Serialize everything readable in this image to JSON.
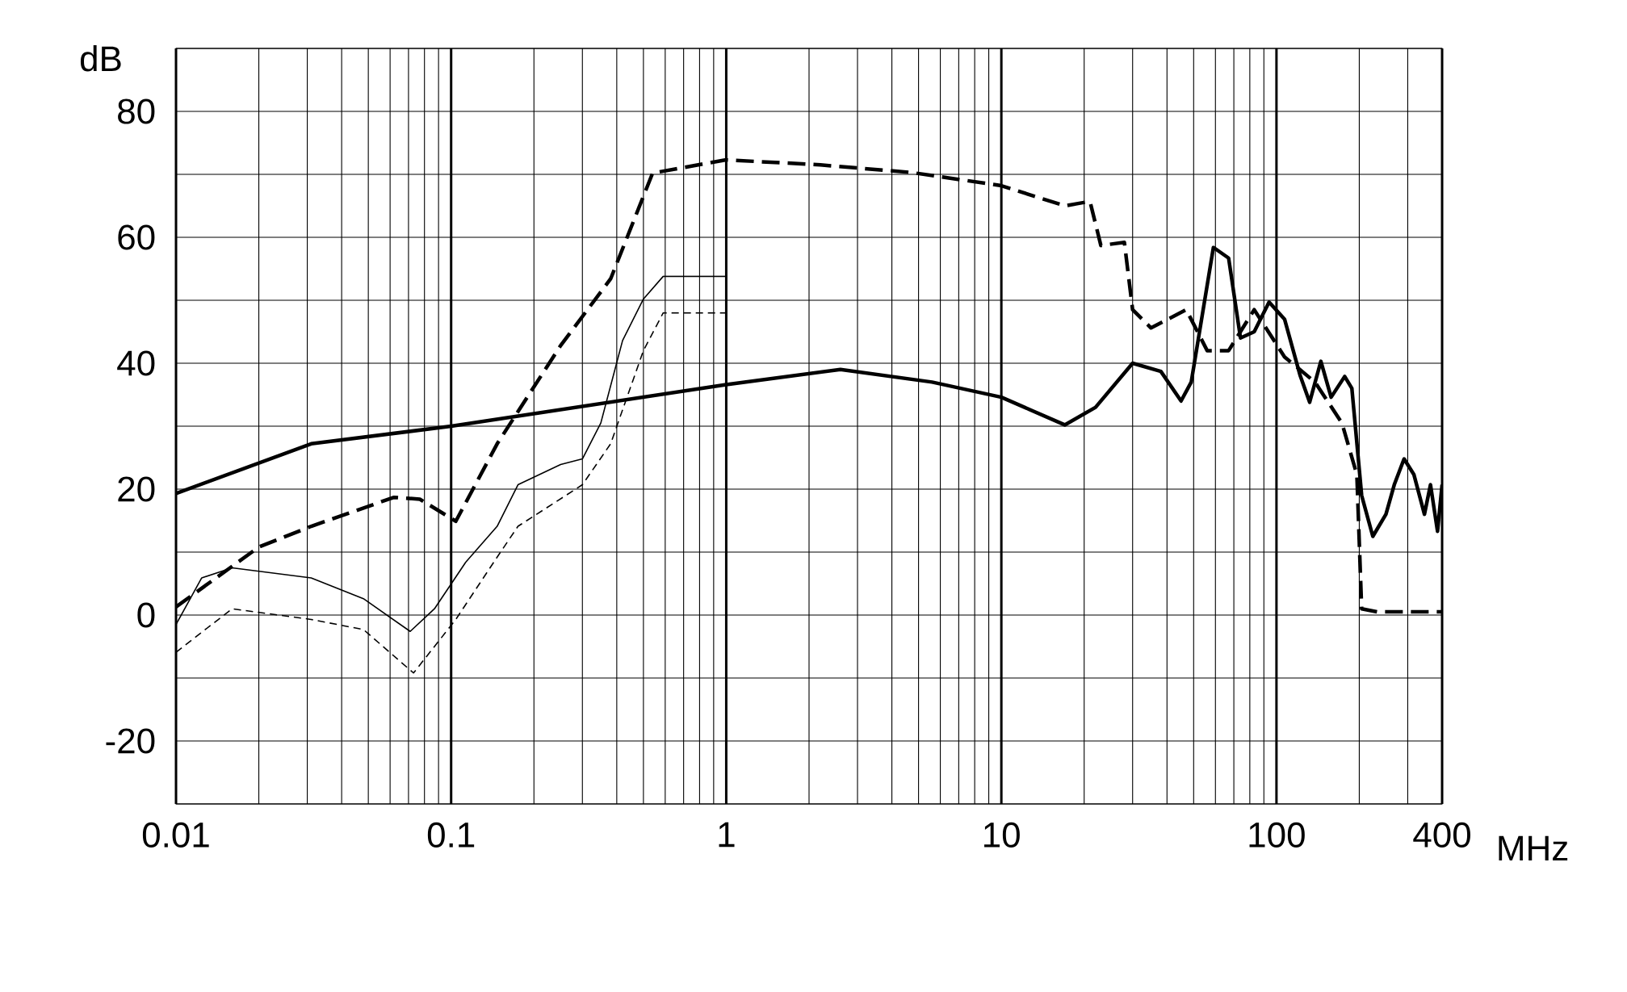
{
  "chart_data": {
    "type": "line",
    "xlabel": "MHz",
    "ylabel": "dB",
    "log": "x",
    "grid": true,
    "marker": "none",
    "xlim": [
      0.01,
      400
    ],
    "ylim": [
      -30,
      90
    ],
    "xticks": [
      0.01,
      0.1,
      1,
      10,
      100,
      400
    ],
    "yticks": [
      {
        "value": -30,
        "label": null
      },
      -20,
      {
        "value": -10,
        "label": null
      },
      0,
      {
        "value": 10,
        "label": null
      },
      20,
      {
        "value": 30,
        "label": null
      },
      40,
      {
        "value": 50,
        "label": null
      },
      60,
      {
        "value": 70,
        "label": null
      },
      80,
      {
        "value": 90,
        "label": null
      }
    ],
    "series": [
      {
        "color": "#000000",
        "line_style": "solid",
        "x": [
          0.01,
          0.031,
          0.1,
          1,
          2.6,
          5.6,
          10,
          17,
          22,
          30,
          38,
          45,
          49,
          59,
          67,
          74,
          83,
          94,
          107,
          122,
          132,
          145,
          158,
          177,
          188,
          204,
          224,
          250,
          268,
          291,
          316,
          345,
          363,
          385,
          400
        ],
        "values": [
          19.3,
          27.2,
          30,
          36.6,
          39,
          37,
          34.6,
          30.2,
          33,
          40,
          38.7,
          34,
          37,
          58.4,
          56.7,
          44,
          45,
          49.7,
          47,
          38,
          33.8,
          40.3,
          34.6,
          37.9,
          36,
          19,
          12.5,
          16,
          20.7,
          24.8,
          22.3,
          16,
          20.7,
          13.3,
          20.7
        ]
      },
      {
        "color": "#000000",
        "line_style": "dashed",
        "x": [
          0.01,
          0.02,
          0.031,
          0.062,
          0.077,
          0.104,
          0.147,
          0.25,
          0.38,
          0.54,
          1,
          2.2,
          4.7,
          10,
          17,
          21,
          23,
          28,
          30,
          35,
          47,
          56,
          67,
          83,
          107,
          138,
          173,
          196,
          204,
          233,
          400
        ],
        "values": [
          1.3,
          10.8,
          14.1,
          18.7,
          18.4,
          14.9,
          27.2,
          42.8,
          53.4,
          70.2,
          72.3,
          71.5,
          70.3,
          68.2,
          65,
          65.7,
          58.7,
          59.2,
          48.5,
          45.6,
          48.5,
          42,
          42,
          48.5,
          41,
          37,
          30.5,
          22.3,
          1,
          0.5,
          0.5
        ]
      },
      {
        "color": "#000000",
        "line_style": "solid",
        "x": [
          0.01,
          0.0124,
          0.016,
          0.031,
          0.048,
          0.071,
          0.087,
          0.113,
          0.147,
          0.175,
          0.25,
          0.3,
          0.35,
          0.42,
          0.5,
          0.59,
          1
        ],
        "values": [
          -1.5,
          5.9,
          7.5,
          5.9,
          2.6,
          -2.6,
          1,
          8.4,
          14.1,
          20.7,
          23.9,
          24.8,
          30.5,
          43.6,
          50.2,
          53.8,
          53.8
        ]
      },
      {
        "color": "#000000",
        "line_style": "dashed",
        "x": [
          0.01,
          0.016,
          0.031,
          0.048,
          0.073,
          0.104,
          0.147,
          0.175,
          0.3,
          0.38,
          0.5,
          0.59,
          1
        ],
        "values": [
          -5.9,
          1,
          -0.7,
          -2.3,
          -9.2,
          -0.7,
          9.2,
          14.1,
          20.7,
          27.2,
          42,
          48,
          48
        ]
      }
    ]
  }
}
